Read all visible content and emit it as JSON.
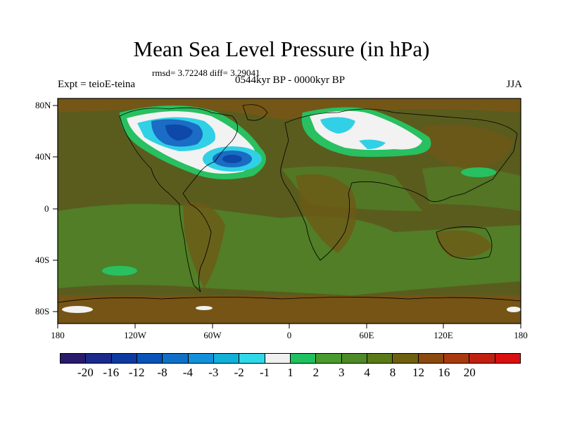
{
  "title": "Mean Sea Level Pressure (in hPa)",
  "stats": "rmsd= 3.72248 diff= 3.29041",
  "experiment": "Expt = teioE-teina",
  "period": "0544kyr BP - 0000kyr BP",
  "season": "JJA",
  "lat_labels": [
    "80N",
    "40N",
    "0",
    "40S",
    "80S"
  ],
  "lon_labels": [
    "180",
    "120W",
    "60W",
    "0",
    "60E",
    "120E",
    "180"
  ],
  "colorbar": {
    "colors": [
      "#2a1a6a",
      "#1a2a8a",
      "#0e3aa0",
      "#0a54b8",
      "#1070c8",
      "#1490d8",
      "#10b0d8",
      "#30d8e8",
      "#f0f0f0",
      "#20c060",
      "#4a9a30",
      "#4e8a28",
      "#5a7a18",
      "#6e6010",
      "#8a4a10",
      "#a83a10",
      "#c02010",
      "#d81010"
    ],
    "labels": [
      "-20",
      "-16",
      "-12",
      "-8",
      "-4",
      "-3",
      "-2",
      "-1",
      "1",
      "2",
      "3",
      "4",
      "8",
      "12",
      "16",
      "20"
    ]
  },
  "colors": {
    "background_field": "#5a6a1e",
    "land_field": "#6a5a18",
    "ocean_light": "#4d8828",
    "white_contour": "#f2f2f2",
    "blue_contour": "#1c68c0",
    "cyan_contour": "#22b8d8",
    "green_contour": "#28c060"
  }
}
